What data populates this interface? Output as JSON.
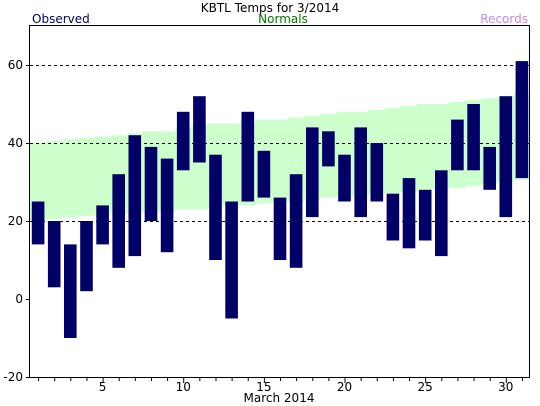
{
  "chart_data": {
    "type": "bar",
    "title": "KBTL Temps for 3/2014",
    "legend": {
      "observed": "Observed",
      "normals": "Normals",
      "records": "Records"
    },
    "xlabel": "March 2014",
    "ylabel": "",
    "x": [
      1,
      2,
      3,
      4,
      5,
      6,
      7,
      8,
      9,
      10,
      11,
      12,
      13,
      14,
      15,
      16,
      17,
      18,
      19,
      20,
      21,
      22,
      23,
      24,
      25,
      26,
      27,
      28,
      29,
      30,
      31
    ],
    "xlim": [
      0.5,
      31.5
    ],
    "xticks": [
      5,
      10,
      15,
      20,
      25,
      30
    ],
    "ylim": [
      -20,
      70
    ],
    "yticks": [
      -20,
      0,
      20,
      40,
      60
    ],
    "gridlines": [
      20,
      40,
      60
    ],
    "grid": true,
    "colors": {
      "observed": "#000066",
      "normals_fill": "#ccffcc",
      "normals_text": "#007700",
      "records_text": "#cc88dd",
      "title": "#000000"
    },
    "series": [
      {
        "name": "Observed",
        "high": [
          25,
          20,
          14,
          20,
          24,
          32,
          42,
          39,
          36,
          48,
          52,
          37,
          25,
          48,
          38,
          26,
          32,
          44,
          43,
          37,
          44,
          40,
          27,
          31,
          28,
          33,
          46,
          50,
          39,
          52,
          61
        ],
        "low": [
          14,
          3,
          -10,
          2,
          14,
          8,
          11,
          20,
          12,
          33,
          35,
          10,
          -5,
          25,
          26,
          10,
          8,
          21,
          34,
          25,
          21,
          25,
          15,
          13,
          15,
          11,
          33,
          33,
          28,
          21,
          31
        ]
      },
      {
        "name": "Normals",
        "high": [
          40,
          40.5,
          41,
          41.3,
          41.7,
          42,
          42.5,
          43,
          43,
          44,
          44.5,
          45,
          45,
          45.5,
          46,
          46,
          46.5,
          47,
          47.5,
          48,
          48,
          48.5,
          49,
          49.5,
          50,
          50,
          50.5,
          51,
          51.5,
          52,
          52.5
        ],
        "low": [
          20,
          20.5,
          21,
          21.3,
          21.5,
          22,
          22,
          22.3,
          22.5,
          23,
          23,
          23.5,
          24,
          24,
          24.5,
          25,
          25,
          25.5,
          26,
          26,
          26.5,
          27,
          27,
          27.5,
          28,
          28,
          28.5,
          29,
          29.5,
          30,
          30.5
        ]
      }
    ]
  }
}
